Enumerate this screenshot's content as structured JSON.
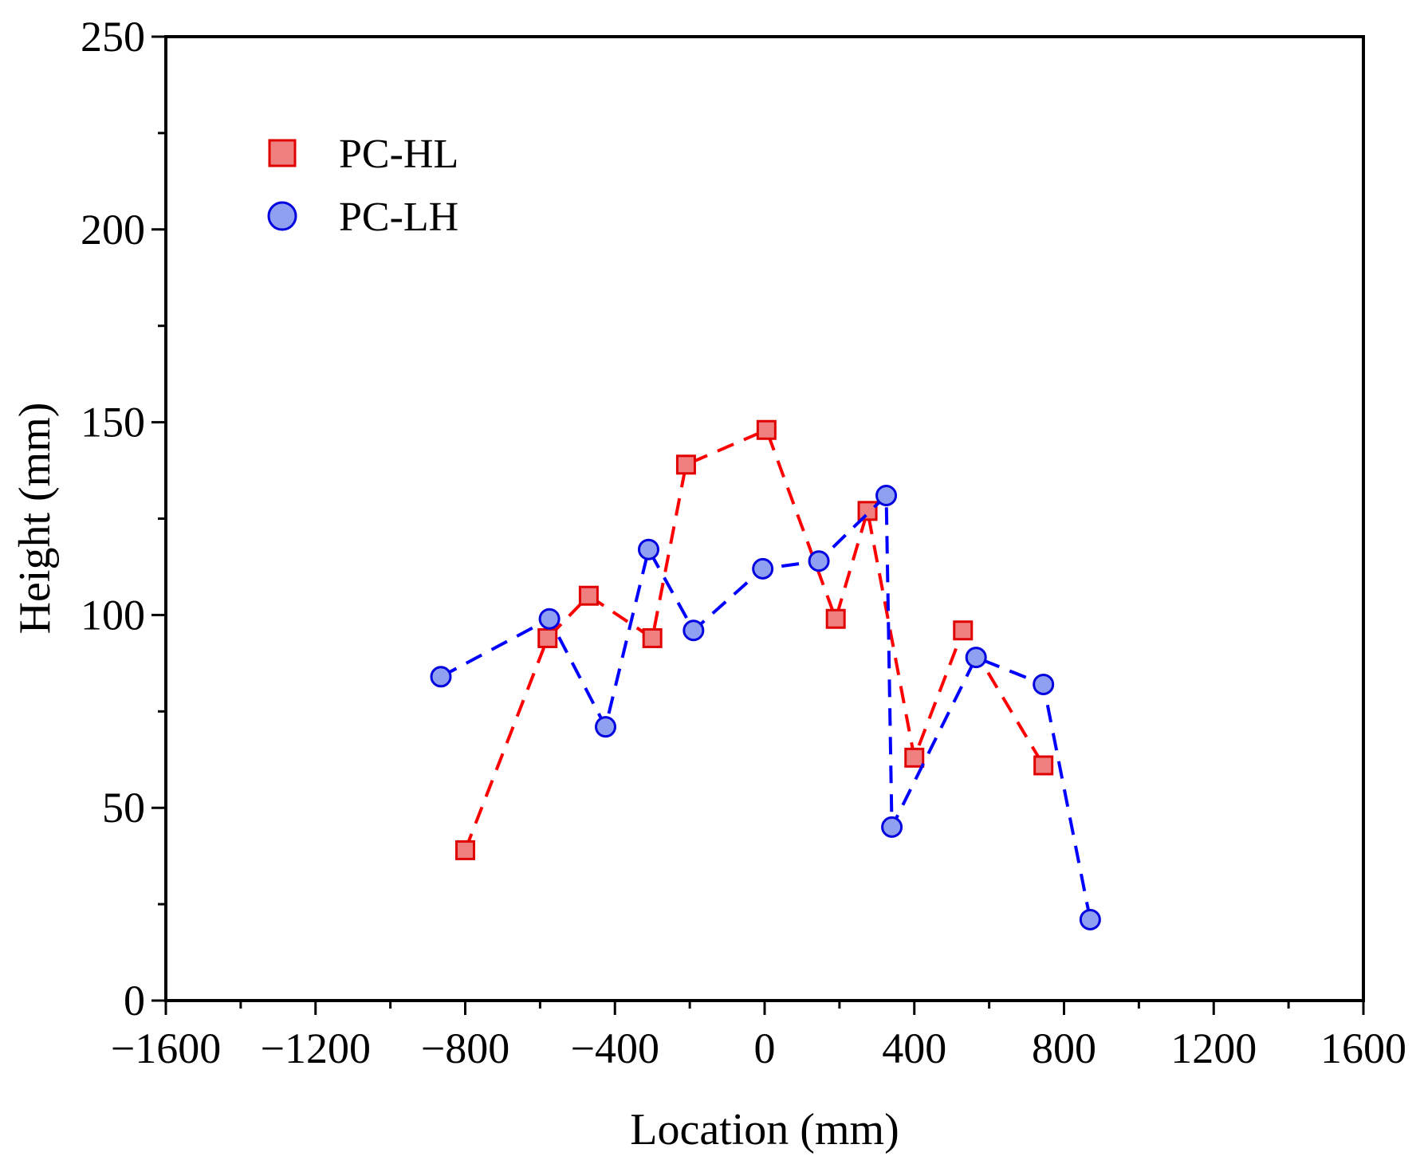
{
  "chart_data": {
    "type": "line",
    "title": "",
    "xlabel": "Location (mm)",
    "ylabel": "Height (mm)",
    "xlim": [
      -1600,
      1600
    ],
    "ylim": [
      0,
      250
    ],
    "xticks": [
      -1600,
      -1200,
      -800,
      -400,
      0,
      400,
      800,
      1200,
      1600
    ],
    "xtick_labels": [
      "−1600",
      "−1200",
      "−800",
      "−400",
      "0",
      "400",
      "800",
      "1200",
      "1600"
    ],
    "yticks": [
      0,
      50,
      100,
      150,
      200,
      250
    ],
    "ytick_labels": [
      "0",
      "50",
      "100",
      "150",
      "200",
      "250"
    ],
    "grid": false,
    "legend_position": "top-left",
    "series": [
      {
        "name": "PC-HL",
        "marker": "square",
        "line_style": "dashed",
        "line_color": "#ff0000",
        "marker_fill": "#f08080",
        "marker_edge": "#e00000",
        "x": [
          -800,
          -580,
          -470,
          -300,
          -210,
          5,
          190,
          275,
          400,
          530,
          745
        ],
        "y": [
          39,
          94,
          105,
          94,
          139,
          148,
          99,
          127,
          63,
          96,
          61
        ]
      },
      {
        "name": "PC-LH",
        "marker": "circle",
        "line_style": "dashed",
        "line_color": "#0000ff",
        "marker_fill": "#8fa0f0",
        "marker_edge": "#0000e0",
        "x": [
          -865,
          -575,
          -425,
          -310,
          -190,
          -5,
          145,
          325,
          340,
          565,
          745,
          870
        ],
        "y": [
          84,
          99,
          71,
          117,
          96,
          112,
          114,
          131,
          45,
          89,
          82,
          21
        ]
      }
    ]
  }
}
